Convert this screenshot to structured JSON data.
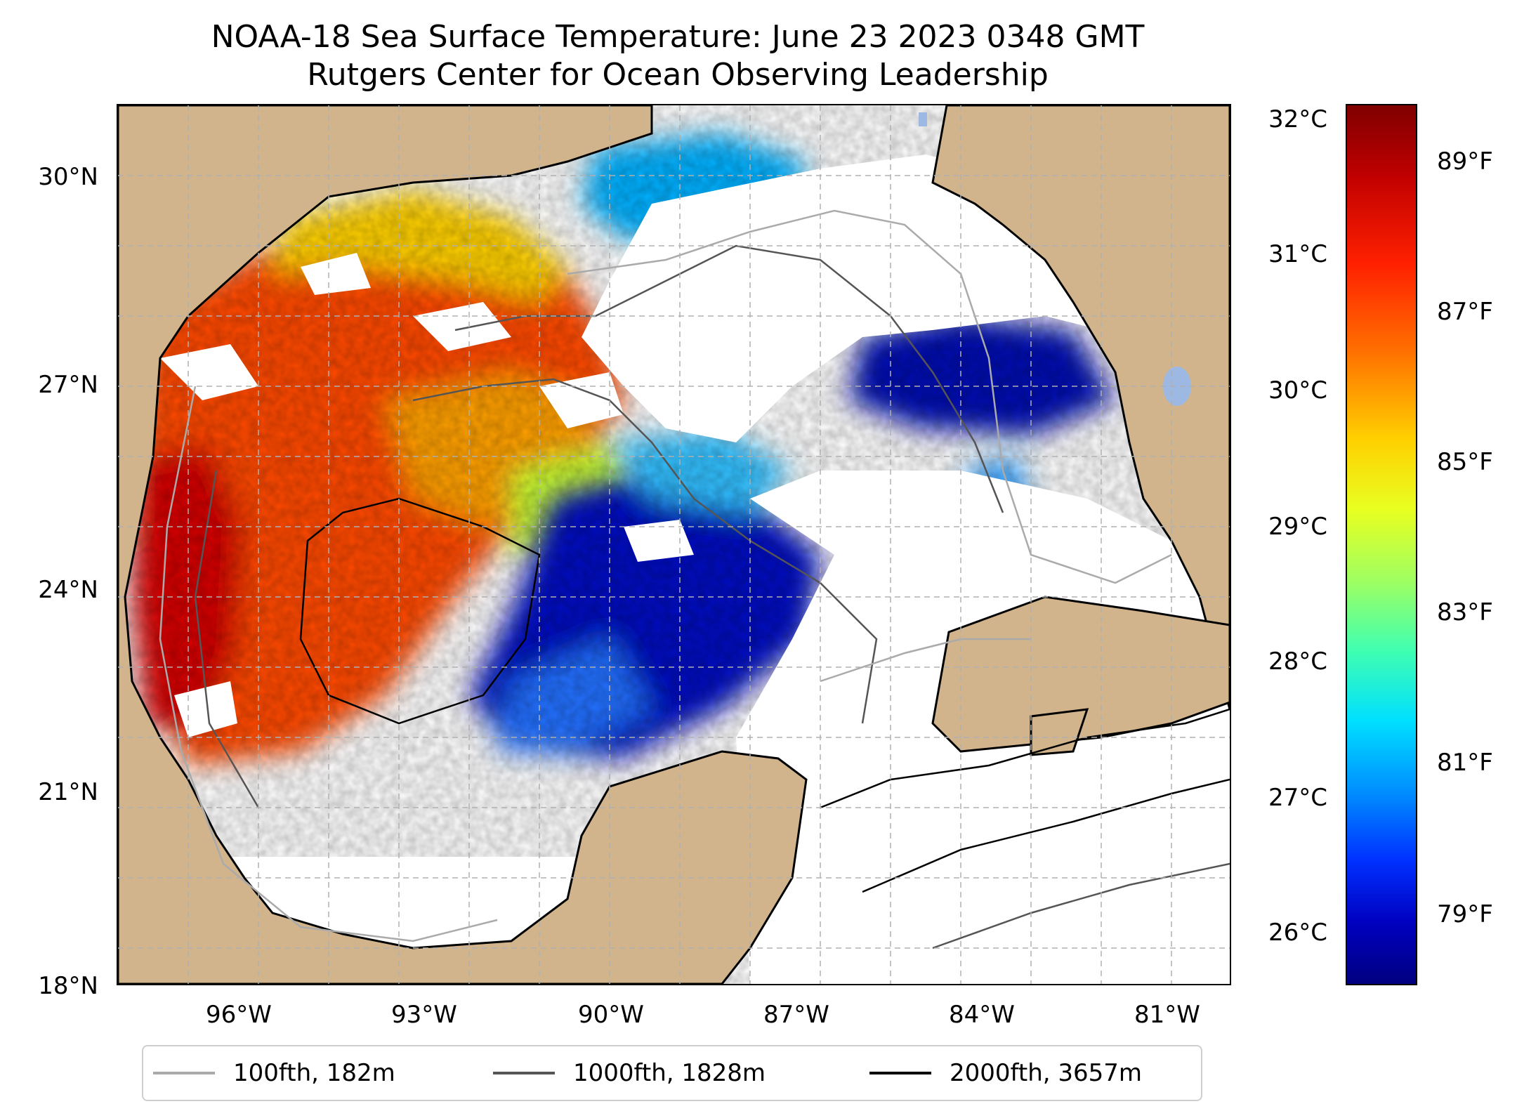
{
  "title": {
    "line1": "NOAA-18 Sea Surface Temperature: June 23 2023 0348 GMT",
    "line2": "Rutgers Center for Ocean Observing Leadership"
  },
  "lat_ticks": [
    "30°N",
    "27°N",
    "24°N",
    "21°N",
    "18°N"
  ],
  "lon_ticks": [
    "96°W",
    "93°W",
    "90°W",
    "87°W",
    "84°W",
    "81°W"
  ],
  "colorbar": {
    "celsius_ticks": [
      "32°C",
      "31°C",
      "30°C",
      "29°C",
      "28°C",
      "27°C",
      "26°C"
    ],
    "fahrenheit_ticks": [
      "89°F",
      "87°F",
      "85°F",
      "83°F",
      "81°F",
      "79°F"
    ]
  },
  "legend": [
    {
      "label": "100fth, 182m",
      "color": "#aaaaaa"
    },
    {
      "label": "1000fth, 1828m",
      "color": "#555555"
    },
    {
      "label": "2000fth, 3657m",
      "color": "#000000"
    }
  ],
  "colors": {
    "land": "#d2b48c",
    "lake": "#9db9e3",
    "grid": "#b0b0b0"
  }
}
